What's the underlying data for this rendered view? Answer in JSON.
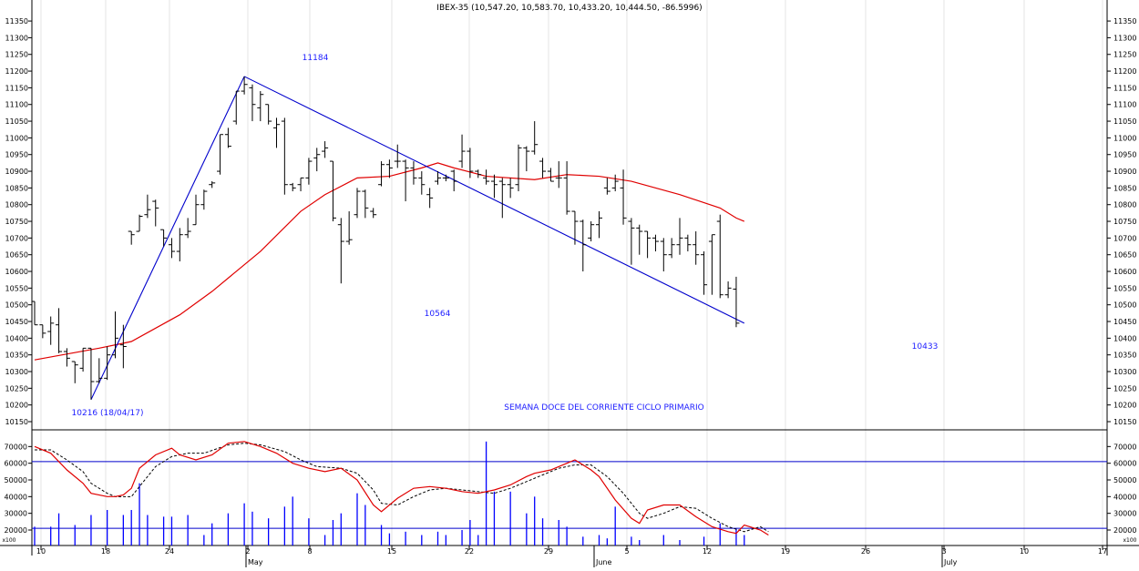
{
  "chart_data": {
    "type": "ohlc",
    "title": "IBEX-35 (10,547.20, 10,583.70, 10,433.20, 10,444.50, -86.5996)",
    "annotation_text": "SEMANA DOCE DEL CORRIENTE CICLO PRIMARIO",
    "price_labels": {
      "start_low": "10216 (18/04/17)",
      "peak_high": "11184",
      "mid_low": "10564",
      "last_low": "10433"
    },
    "price_axis": {
      "ylim": [
        10120,
        11390
      ],
      "ticks": [
        10150,
        10200,
        10250,
        10300,
        10350,
        10400,
        10450,
        10500,
        10550,
        10600,
        10650,
        10700,
        10750,
        10800,
        10850,
        10900,
        10950,
        11000,
        11050,
        11100,
        11150,
        11200,
        11250,
        11300,
        11350
      ]
    },
    "volume_axis": {
      "ylim": [
        0,
        76000
      ],
      "ticks": [
        20000,
        30000,
        40000,
        50000,
        60000,
        70000
      ],
      "scale_label": "x100",
      "reference_levels": [
        61000,
        21000
      ]
    },
    "x_axis": {
      "day_labels": [
        "10",
        "18",
        "24",
        "2",
        "8",
        "15",
        "22",
        "29",
        "5",
        "12",
        "19",
        "26",
        "3",
        "10",
        "17"
      ],
      "month_labels": [
        "May",
        "June",
        "July"
      ]
    },
    "ohlc": [
      {
        "o": 10510,
        "h": 10510,
        "l": 10440,
        "c": 10440
      },
      {
        "o": 10440,
        "h": 10440,
        "l": 10400,
        "c": 10415
      },
      {
        "o": 10420,
        "h": 10465,
        "l": 10380,
        "c": 10445
      },
      {
        "o": 10440,
        "h": 10490,
        "l": 10355,
        "c": 10360
      },
      {
        "o": 10360,
        "h": 10370,
        "l": 10315,
        "c": 10340
      },
      {
        "o": 10330,
        "h": 10330,
        "l": 10265,
        "c": 10320
      },
      {
        "o": 10310,
        "h": 10370,
        "l": 10300,
        "c": 10370
      },
      {
        "o": 10370,
        "h": 10370,
        "l": 10216,
        "c": 10270
      },
      {
        "o": 10270,
        "h": 10340,
        "l": 10265,
        "c": 10280
      },
      {
        "o": 10280,
        "h": 10375,
        "l": 10275,
        "c": 10350
      },
      {
        "o": 10350,
        "h": 10480,
        "l": 10340,
        "c": 10400
      },
      {
        "o": 10380,
        "h": 10440,
        "l": 10310,
        "c": 10375
      },
      {
        "o": 10720,
        "h": 10720,
        "l": 10680,
        "c": 10710
      },
      {
        "o": 10720,
        "h": 10770,
        "l": 10720,
        "c": 10765
      },
      {
        "o": 10770,
        "h": 10830,
        "l": 10760,
        "c": 10785
      },
      {
        "o": 10810,
        "h": 10815,
        "l": 10735,
        "c": 10790
      },
      {
        "o": 10725,
        "h": 10725,
        "l": 10675,
        "c": 10700
      },
      {
        "o": 10680,
        "h": 10700,
        "l": 10640,
        "c": 10660
      },
      {
        "o": 10660,
        "h": 10730,
        "l": 10630,
        "c": 10710
      },
      {
        "o": 10710,
        "h": 10760,
        "l": 10700,
        "c": 10720
      },
      {
        "o": 10740,
        "h": 10830,
        "l": 10740,
        "c": 10800
      },
      {
        "o": 10800,
        "h": 10845,
        "l": 10785,
        "c": 10840
      },
      {
        "o": 10860,
        "h": 10870,
        "l": 10850,
        "c": 10865
      },
      {
        "o": 10900,
        "h": 11010,
        "l": 10890,
        "c": 11010
      },
      {
        "o": 11010,
        "h": 11030,
        "l": 10970,
        "c": 10975
      },
      {
        "o": 11050,
        "h": 11140,
        "l": 11040,
        "c": 11140
      },
      {
        "o": 11140,
        "h": 11184,
        "l": 11130,
        "c": 11160
      },
      {
        "o": 11150,
        "h": 11160,
        "l": 11050,
        "c": 11100
      },
      {
        "o": 11090,
        "h": 11140,
        "l": 11050,
        "c": 11130
      },
      {
        "o": 11100,
        "h": 11100,
        "l": 11040,
        "c": 11050
      },
      {
        "o": 11030,
        "h": 11060,
        "l": 10970,
        "c": 11040
      },
      {
        "o": 11050,
        "h": 11060,
        "l": 10830,
        "c": 10860
      },
      {
        "o": 10860,
        "h": 10865,
        "l": 10840,
        "c": 10850
      },
      {
        "o": 10860,
        "h": 10880,
        "l": 10840,
        "c": 10880
      },
      {
        "o": 10880,
        "h": 10940,
        "l": 10860,
        "c": 10930
      },
      {
        "o": 10940,
        "h": 10970,
        "l": 10900,
        "c": 10950
      },
      {
        "o": 10960,
        "h": 10990,
        "l": 10940,
        "c": 10970
      },
      {
        "o": 10930,
        "h": 10930,
        "l": 10750,
        "c": 10760
      },
      {
        "o": 10740,
        "h": 10760,
        "l": 10564,
        "c": 10690
      },
      {
        "o": 10690,
        "h": 10780,
        "l": 10680,
        "c": 10695
      },
      {
        "o": 10770,
        "h": 10850,
        "l": 10760,
        "c": 10840
      },
      {
        "o": 10840,
        "h": 10845,
        "l": 10760,
        "c": 10790
      },
      {
        "o": 10780,
        "h": 10790,
        "l": 10760,
        "c": 10770
      },
      {
        "o": 10860,
        "h": 10930,
        "l": 10855,
        "c": 10920
      },
      {
        "o": 10920,
        "h": 10935,
        "l": 10880,
        "c": 10910
      },
      {
        "o": 10930,
        "h": 10980,
        "l": 10910,
        "c": 10930
      },
      {
        "o": 10930,
        "h": 10935,
        "l": 10810,
        "c": 10910
      },
      {
        "o": 10910,
        "h": 10930,
        "l": 10860,
        "c": 10880
      },
      {
        "o": 10880,
        "h": 10900,
        "l": 10830,
        "c": 10860
      },
      {
        "o": 10830,
        "h": 10850,
        "l": 10790,
        "c": 10820
      },
      {
        "o": 10870,
        "h": 10900,
        "l": 10860,
        "c": 10880
      },
      {
        "o": 10880,
        "h": 10890,
        "l": 10870,
        "c": 10880
      },
      {
        "o": 10900,
        "h": 10905,
        "l": 10840,
        "c": 10870
      },
      {
        "o": 10930,
        "h": 11010,
        "l": 10910,
        "c": 10960
      },
      {
        "o": 10960,
        "h": 10970,
        "l": 10880,
        "c": 10900
      },
      {
        "o": 10900,
        "h": 10905,
        "l": 10880,
        "c": 10890
      },
      {
        "o": 10880,
        "h": 10905,
        "l": 10860,
        "c": 10870
      },
      {
        "o": 10870,
        "h": 10890,
        "l": 10820,
        "c": 10860
      },
      {
        "o": 10870,
        "h": 10880,
        "l": 10760,
        "c": 10860
      },
      {
        "o": 10860,
        "h": 10880,
        "l": 10820,
        "c": 10850
      },
      {
        "o": 10860,
        "h": 10980,
        "l": 10840,
        "c": 10970
      },
      {
        "o": 10970,
        "h": 10975,
        "l": 10900,
        "c": 10960
      },
      {
        "o": 10960,
        "h": 11050,
        "l": 10950,
        "c": 10980
      },
      {
        "o": 10930,
        "h": 10940,
        "l": 10880,
        "c": 10900
      },
      {
        "o": 10900,
        "h": 10910,
        "l": 10870,
        "c": 10870
      },
      {
        "o": 10880,
        "h": 10930,
        "l": 10850,
        "c": 10880
      },
      {
        "o": 10880,
        "h": 10930,
        "l": 10770,
        "c": 10780
      },
      {
        "o": 10780,
        "h": 10780,
        "l": 10680,
        "c": 10750
      },
      {
        "o": 10750,
        "h": 10755,
        "l": 10600,
        "c": 10680
      },
      {
        "o": 10700,
        "h": 10750,
        "l": 10690,
        "c": 10740
      },
      {
        "o": 10740,
        "h": 10780,
        "l": 10700,
        "c": 10760
      },
      {
        "o": 10850,
        "h": 10880,
        "l": 10830,
        "c": 10840
      },
      {
        "o": 10850,
        "h": 10890,
        "l": 10840,
        "c": 10870
      },
      {
        "o": 10850,
        "h": 10905,
        "l": 10740,
        "c": 10760
      },
      {
        "o": 10750,
        "h": 10760,
        "l": 10620,
        "c": 10730
      },
      {
        "o": 10730,
        "h": 10740,
        "l": 10650,
        "c": 10720
      },
      {
        "o": 10720,
        "h": 10720,
        "l": 10640,
        "c": 10700
      },
      {
        "o": 10700,
        "h": 10710,
        "l": 10660,
        "c": 10690
      },
      {
        "o": 10690,
        "h": 10700,
        "l": 10600,
        "c": 10650
      },
      {
        "o": 10650,
        "h": 10700,
        "l": 10640,
        "c": 10680
      },
      {
        "o": 10680,
        "h": 10760,
        "l": 10650,
        "c": 10700
      },
      {
        "o": 10700,
        "h": 10710,
        "l": 10660,
        "c": 10680
      },
      {
        "o": 10680,
        "h": 10720,
        "l": 10620,
        "c": 10650
      },
      {
        "o": 10650,
        "h": 10660,
        "l": 10530,
        "c": 10560
      },
      {
        "o": 10690,
        "h": 10710,
        "l": 10530,
        "c": 10710
      },
      {
        "o": 10750,
        "h": 10770,
        "l": 10520,
        "c": 10530
      },
      {
        "o": 10530,
        "h": 10570,
        "l": 10520,
        "c": 10550
      },
      {
        "o": 10547,
        "h": 10584,
        "l": 10433,
        "c": 10445
      }
    ],
    "moving_average": [
      [
        0,
        10335
      ],
      [
        8,
        10370
      ],
      [
        12,
        10390
      ],
      [
        18,
        10470
      ],
      [
        22,
        10540
      ],
      [
        28,
        10660
      ],
      [
        33,
        10780
      ],
      [
        36,
        10830
      ],
      [
        40,
        10880
      ],
      [
        44,
        10885
      ],
      [
        48,
        10910
      ],
      [
        50,
        10925
      ],
      [
        52,
        10910
      ],
      [
        56,
        10885
      ],
      [
        62,
        10875
      ],
      [
        66,
        10890
      ],
      [
        70,
        10885
      ],
      [
        74,
        10870
      ],
      [
        80,
        10830
      ],
      [
        85,
        10790
      ],
      [
        87,
        10760
      ],
      [
        88,
        10750
      ]
    ],
    "trend_lines": [
      [
        [
          7,
          10216
        ],
        [
          26,
          11184
        ]
      ],
      [
        [
          26,
          11184
        ],
        [
          88,
          10445
        ]
      ]
    ],
    "volume": [
      {
        "x": 0,
        "v": 22000
      },
      {
        "x": 2,
        "v": 22000
      },
      {
        "x": 3,
        "v": 30000
      },
      {
        "x": 5,
        "v": 23000
      },
      {
        "x": 7,
        "v": 29000
      },
      {
        "x": 9,
        "v": 32000
      },
      {
        "x": 11,
        "v": 29000
      },
      {
        "x": 12,
        "v": 32000
      },
      {
        "x": 13,
        "v": 48000
      },
      {
        "x": 14,
        "v": 29000
      },
      {
        "x": 16,
        "v": 28000
      },
      {
        "x": 17,
        "v": 28000
      },
      {
        "x": 19,
        "v": 29000
      },
      {
        "x": 21,
        "v": 17000
      },
      {
        "x": 22,
        "v": 24000
      },
      {
        "x": 24,
        "v": 30000
      },
      {
        "x": 26,
        "v": 36000
      },
      {
        "x": 27,
        "v": 31000
      },
      {
        "x": 29,
        "v": 27000
      },
      {
        "x": 31,
        "v": 34000
      },
      {
        "x": 32,
        "v": 40000
      },
      {
        "x": 34,
        "v": 27000
      },
      {
        "x": 36,
        "v": 17000
      },
      {
        "x": 37,
        "v": 26000
      },
      {
        "x": 38,
        "v": 30000
      },
      {
        "x": 40,
        "v": 42000
      },
      {
        "x": 41,
        "v": 35000
      },
      {
        "x": 43,
        "v": 23000
      },
      {
        "x": 44,
        "v": 18000
      },
      {
        "x": 46,
        "v": 19000
      },
      {
        "x": 48,
        "v": 17000
      },
      {
        "x": 50,
        "v": 19000
      },
      {
        "x": 51,
        "v": 17000
      },
      {
        "x": 53,
        "v": 20000
      },
      {
        "x": 54,
        "v": 26000
      },
      {
        "x": 55,
        "v": 17000
      },
      {
        "x": 56,
        "v": 73000
      },
      {
        "x": 57,
        "v": 43000
      },
      {
        "x": 59,
        "v": 43000
      },
      {
        "x": 61,
        "v": 30000
      },
      {
        "x": 62,
        "v": 40000
      },
      {
        "x": 63,
        "v": 27000
      },
      {
        "x": 65,
        "v": 26000
      },
      {
        "x": 66,
        "v": 22000
      },
      {
        "x": 68,
        "v": 16000
      },
      {
        "x": 70,
        "v": 17000
      },
      {
        "x": 71,
        "v": 15000
      },
      {
        "x": 72,
        "v": 34000
      },
      {
        "x": 74,
        "v": 16000
      },
      {
        "x": 75,
        "v": 14000
      },
      {
        "x": 78,
        "v": 17000
      },
      {
        "x": 80,
        "v": 14000
      },
      {
        "x": 83,
        "v": 16000
      },
      {
        "x": 85,
        "v": 24000
      },
      {
        "x": 87,
        "v": 21000
      },
      {
        "x": 88,
        "v": 17000
      }
    ],
    "oscillator_red": [
      [
        0,
        70000
      ],
      [
        2,
        66000
      ],
      [
        4,
        56000
      ],
      [
        6,
        48000
      ],
      [
        7,
        42000
      ],
      [
        9,
        40000
      ],
      [
        10,
        40000
      ],
      [
        11,
        41000
      ],
      [
        12,
        45000
      ],
      [
        13,
        57000
      ],
      [
        15,
        65000
      ],
      [
        17,
        69000
      ],
      [
        18,
        65000
      ],
      [
        20,
        62000
      ],
      [
        22,
        65000
      ],
      [
        24,
        72000
      ],
      [
        26,
        73000
      ],
      [
        28,
        70000
      ],
      [
        30,
        66000
      ],
      [
        32,
        60000
      ],
      [
        34,
        57000
      ],
      [
        36,
        55000
      ],
      [
        38,
        57000
      ],
      [
        40,
        50000
      ],
      [
        42,
        35000
      ],
      [
        43,
        31000
      ],
      [
        45,
        39000
      ],
      [
        47,
        45000
      ],
      [
        49,
        46000
      ],
      [
        51,
        45000
      ],
      [
        53,
        43000
      ],
      [
        55,
        42000
      ],
      [
        57,
        44000
      ],
      [
        59,
        47000
      ],
      [
        61,
        52000
      ],
      [
        62,
        54000
      ],
      [
        64,
        56000
      ],
      [
        66,
        60000
      ],
      [
        67,
        62000
      ],
      [
        69,
        56000
      ],
      [
        70,
        52000
      ],
      [
        72,
        38000
      ],
      [
        74,
        27000
      ],
      [
        75,
        24000
      ],
      [
        76,
        32000
      ],
      [
        78,
        35000
      ],
      [
        80,
        35000
      ],
      [
        82,
        28000
      ],
      [
        84,
        22000
      ],
      [
        86,
        19000
      ],
      [
        87,
        18000
      ],
      [
        88,
        23000
      ],
      [
        90,
        20000
      ],
      [
        91,
        17000
      ]
    ],
    "oscillator_signal": [
      [
        0,
        68000
      ],
      [
        2,
        68000
      ],
      [
        4,
        62000
      ],
      [
        6,
        55000
      ],
      [
        7,
        48000
      ],
      [
        9,
        42000
      ],
      [
        10,
        40000
      ],
      [
        12,
        40000
      ],
      [
        13,
        46000
      ],
      [
        15,
        58000
      ],
      [
        17,
        64000
      ],
      [
        19,
        66000
      ],
      [
        21,
        66000
      ],
      [
        24,
        71000
      ],
      [
        26,
        72000
      ],
      [
        28,
        71000
      ],
      [
        31,
        67000
      ],
      [
        33,
        62000
      ],
      [
        35,
        58000
      ],
      [
        38,
        57000
      ],
      [
        40,
        54000
      ],
      [
        42,
        44000
      ],
      [
        43,
        36000
      ],
      [
        45,
        35000
      ],
      [
        47,
        40000
      ],
      [
        49,
        44000
      ],
      [
        51,
        45000
      ],
      [
        53,
        44000
      ],
      [
        55,
        43000
      ],
      [
        57,
        42000
      ],
      [
        59,
        45000
      ],
      [
        61,
        49000
      ],
      [
        63,
        53000
      ],
      [
        65,
        57000
      ],
      [
        67,
        59000
      ],
      [
        69,
        59000
      ],
      [
        71,
        52000
      ],
      [
        73,
        42000
      ],
      [
        75,
        30000
      ],
      [
        76,
        27000
      ],
      [
        78,
        30000
      ],
      [
        80,
        34000
      ],
      [
        82,
        33000
      ],
      [
        84,
        27000
      ],
      [
        86,
        22000
      ],
      [
        88,
        19000
      ],
      [
        90,
        22000
      ],
      [
        91,
        19000
      ]
    ],
    "colors": {
      "price_bars": "#000000",
      "moving_average": "#e00000",
      "trend_line": "#0000cc",
      "label_text": "#2020ff",
      "volume_bars": "#0000ff",
      "oscillator_red": "#e00000",
      "oscillator_signal": "#000000",
      "reference_lines": "#0000cc"
    }
  }
}
